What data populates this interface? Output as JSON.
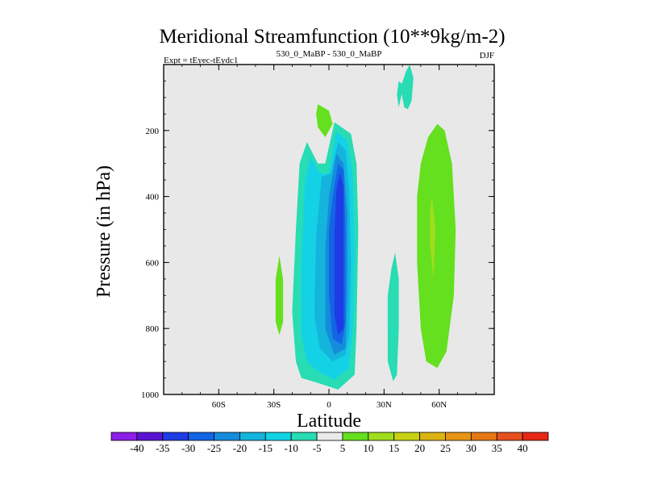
{
  "chart_data": {
    "type": "contour",
    "title": "Meridional Streamfunction (10**9kg/m-2)",
    "subtitle_left": "Expt = tEyec-tEydc1",
    "subtitle_center": "530_0_MaBP - 530_0_MaBP",
    "subtitle_right": "DJF",
    "xlabel": "Latitude",
    "ylabel": "Pressure (in hPa)",
    "xlim": [
      -90,
      90
    ],
    "ylim": [
      1000,
      0
    ],
    "x_ticks": [
      {
        "value": -60,
        "label": "60S"
      },
      {
        "value": -30,
        "label": "30S"
      },
      {
        "value": 0,
        "label": "0"
      },
      {
        "value": 30,
        "label": "30N"
      },
      {
        "value": 60,
        "label": "60N"
      }
    ],
    "y_ticks": [
      {
        "value": 200,
        "label": "200"
      },
      {
        "value": 400,
        "label": "400"
      },
      {
        "value": 600,
        "label": "600"
      },
      {
        "value": 800,
        "label": "800"
      },
      {
        "value": 1000,
        "label": "1000"
      }
    ],
    "colorbar": {
      "colors": [
        "#8c1ee6",
        "#5a14d2",
        "#1e3ce6",
        "#1464e6",
        "#148cdc",
        "#14b4dc",
        "#14d2e6",
        "#28dcb4",
        "#eaeaea",
        "#64e01e",
        "#a0dc1e",
        "#c8d214",
        "#dcb414",
        "#e69614",
        "#e67814",
        "#e6501e",
        "#e62814"
      ],
      "labels": [
        "-40",
        "-35",
        "-30",
        "-25",
        "-20",
        "-15",
        "-10",
        "-5",
        "5",
        "10",
        "15",
        "20",
        "25",
        "30",
        "35",
        "40"
      ]
    },
    "regions": [
      {
        "name": "sh-cell-outer",
        "level": -5,
        "color": "#28dcb4",
        "points": [
          [
            -12,
            235
          ],
          [
            -6,
            300
          ],
          [
            -2,
            300
          ],
          [
            3,
            175
          ],
          [
            12,
            210
          ],
          [
            15,
            300
          ],
          [
            16,
            500
          ],
          [
            15,
            800
          ],
          [
            14,
            940
          ],
          [
            5,
            985
          ],
          [
            -6,
            965
          ],
          [
            -15,
            950
          ],
          [
            -18,
            900
          ],
          [
            -20,
            750
          ],
          [
            -18,
            500
          ],
          [
            -16,
            300
          ]
        ]
      },
      {
        "name": "sh-cell-m10",
        "level": -10,
        "color": "#14d2e6",
        "points": [
          [
            -10,
            280
          ],
          [
            -5,
            330
          ],
          [
            0,
            330
          ],
          [
            4,
            205
          ],
          [
            10,
            230
          ],
          [
            13,
            340
          ],
          [
            14,
            550
          ],
          [
            13,
            800
          ],
          [
            11,
            920
          ],
          [
            3,
            955
          ],
          [
            -6,
            930
          ],
          [
            -12,
            900
          ],
          [
            -15,
            820
          ],
          [
            -15,
            600
          ],
          [
            -13,
            350
          ]
        ]
      },
      {
        "name": "sh-cell-m15",
        "level": -15,
        "color": "#14b4dc",
        "points": [
          [
            -4,
            340
          ],
          [
            1,
            330
          ],
          [
            5,
            235
          ],
          [
            9,
            260
          ],
          [
            11,
            380
          ],
          [
            12,
            600
          ],
          [
            11,
            820
          ],
          [
            9,
            880
          ],
          [
            2,
            900
          ],
          [
            -5,
            860
          ],
          [
            -8,
            760
          ],
          [
            -7,
            520
          ]
        ]
      },
      {
        "name": "sh-cell-m20",
        "level": -20,
        "color": "#148cdc",
        "points": [
          [
            0,
            400
          ],
          [
            4,
            270
          ],
          [
            8,
            300
          ],
          [
            10,
            450
          ],
          [
            10,
            700
          ],
          [
            9,
            860
          ],
          [
            3,
            880
          ],
          [
            -2,
            800
          ],
          [
            -2,
            560
          ]
        ]
      },
      {
        "name": "sh-cell-m25",
        "level": -25,
        "color": "#1464e6",
        "points": [
          [
            2,
            400
          ],
          [
            5,
            300
          ],
          [
            8,
            320
          ],
          [
            9,
            500
          ],
          [
            9,
            780
          ],
          [
            7,
            850
          ],
          [
            2,
            830
          ],
          [
            0,
            700
          ],
          [
            0,
            500
          ]
        ]
      },
      {
        "name": "sh-cell-m30",
        "level": -30,
        "color": "#1e3ce6",
        "points": [
          [
            4,
            380
          ],
          [
            6,
            330
          ],
          [
            8,
            370
          ],
          [
            8,
            600
          ],
          [
            8,
            800
          ],
          [
            5,
            820
          ],
          [
            3,
            760
          ],
          [
            3,
            520
          ]
        ]
      },
      {
        "name": "nh-cell-outer",
        "level": 5,
        "color": "#64e01e",
        "points": [
          [
            59,
            180
          ],
          [
            63,
            200
          ],
          [
            67,
            300
          ],
          [
            69,
            500
          ],
          [
            68,
            700
          ],
          [
            64,
            870
          ],
          [
            59,
            920
          ],
          [
            53,
            900
          ],
          [
            50,
            800
          ],
          [
            48,
            600
          ],
          [
            48,
            400
          ],
          [
            50,
            300
          ],
          [
            54,
            220
          ]
        ]
      },
      {
        "name": "nh-cell-core",
        "level": 10,
        "color": "#a0dc1e",
        "points": [
          [
            56,
            400
          ],
          [
            58,
            500
          ],
          [
            57,
            650
          ],
          [
            55,
            550
          ],
          [
            55,
            450
          ]
        ]
      },
      {
        "name": "upper-cell-nh",
        "level": -5,
        "color": "#28dcb4",
        "points": [
          [
            44,
            0
          ],
          [
            46,
            40
          ],
          [
            45,
            110
          ],
          [
            43,
            135
          ],
          [
            41,
            130
          ],
          [
            39,
            70
          ],
          [
            42,
            20
          ]
        ]
      },
      {
        "name": "upper-cell-nh-inner",
        "level": -5,
        "color": "#28dcb4",
        "points": [
          [
            38,
            130
          ],
          [
            40,
            80
          ],
          [
            40,
            60
          ],
          [
            38,
            50
          ],
          [
            37,
            90
          ]
        ]
      },
      {
        "name": "midlat-nh-cell",
        "level": -5,
        "color": "#28dcb4",
        "points": [
          [
            36,
            570
          ],
          [
            38,
            650
          ],
          [
            38,
            800
          ],
          [
            37,
            940
          ],
          [
            35,
            960
          ],
          [
            32,
            900
          ],
          [
            32,
            700
          ],
          [
            34,
            620
          ]
        ]
      },
      {
        "name": "upper-cell-eq",
        "level": 5,
        "color": "#64e01e",
        "points": [
          [
            -6,
            120
          ],
          [
            0,
            140
          ],
          [
            2,
            180
          ],
          [
            -2,
            220
          ],
          [
            -6,
            190
          ],
          [
            -7,
            150
          ]
        ]
      },
      {
        "name": "midlat-sh-cell",
        "level": 5,
        "color": "#64e01e",
        "points": [
          [
            -27,
            580
          ],
          [
            -25,
            650
          ],
          [
            -25,
            780
          ],
          [
            -27,
            820
          ],
          [
            -29,
            780
          ],
          [
            -29,
            650
          ]
        ]
      }
    ]
  }
}
